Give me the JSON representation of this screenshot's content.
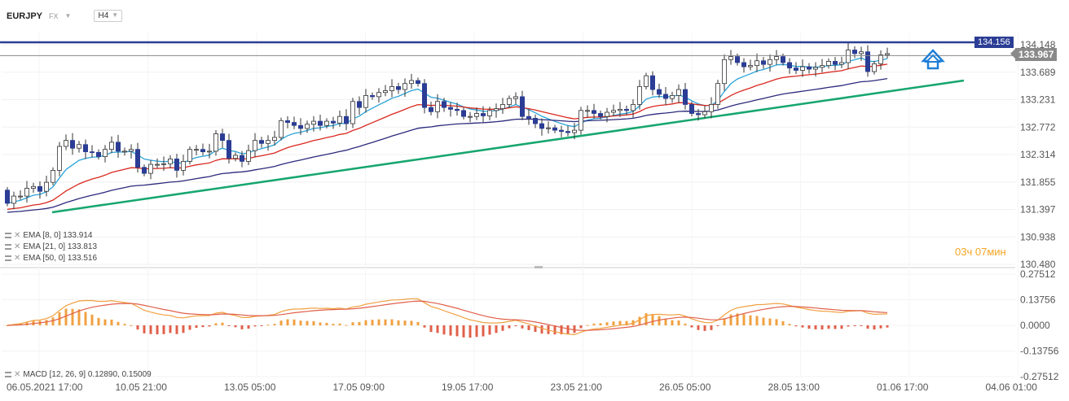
{
  "header": {
    "symbol": "EURJPY",
    "market": "FX",
    "timeframe": "H4"
  },
  "legend": {
    "ema8": "EMA [8, 0] 133.914",
    "ema21": "EMA [21, 0] 133.813",
    "ema50": "EMA [50, 0] 133.516",
    "macd": "MACD [12, 26, 9] 0.12890, 0.15009"
  },
  "countdown": {
    "hours": "03",
    "hours_unit": "ч",
    "minutes": "07",
    "minutes_unit": "мин"
  },
  "price_tags": {
    "resistance": "134.156",
    "current": "133.967"
  },
  "colors": {
    "bull": "#ffffff",
    "bear": "#2b3d94",
    "ema8": "#2aa3d8",
    "ema21": "#d9281f",
    "ema50": "#2b2a7c",
    "trend": "#16a66e",
    "resistance": "#2b3d94",
    "macd_line": "#f0a040",
    "signal_line": "#e0604a",
    "hist_pos": "#f0a040",
    "hist_neg": "#e0604a",
    "arrow": "#1f7fd6"
  },
  "icons": {
    "arrow": "double-up-arrow-icon",
    "legend": "hamburger-icon",
    "remove": "close-icon"
  },
  "chart_data": [
    {
      "type": "candlestick",
      "ylim": [
        130.48,
        134.28
      ],
      "y_ticks": [
        "134.148",
        "133.689",
        "133.231",
        "132.772",
        "132.314",
        "131.855",
        "131.397",
        "130.938",
        "130.480"
      ],
      "x_ticks": [
        "06.05.2021 17:00",
        "10.05 21:00",
        "13.05 05:00",
        "17.05 09:00",
        "19.05 17:00",
        "23.05 21:00",
        "26.05 05:00",
        "28.05 13:00",
        "01.06 17:00",
        "04.06 01:00"
      ],
      "closes": [
        131.5,
        131.62,
        131.62,
        131.75,
        131.78,
        131.7,
        131.85,
        132.05,
        132.45,
        132.55,
        132.42,
        132.48,
        132.36,
        132.35,
        132.28,
        132.4,
        132.52,
        132.37,
        132.37,
        132.4,
        132.1,
        132.0,
        132.15,
        132.15,
        132.16,
        132.24,
        132.05,
        132.2,
        132.4,
        132.4,
        132.36,
        132.37,
        132.66,
        132.55,
        132.25,
        132.3,
        132.2,
        132.38,
        132.55,
        132.5,
        132.55,
        132.6,
        132.88,
        132.85,
        132.8,
        132.75,
        132.82,
        132.87,
        132.8,
        132.87,
        132.84,
        132.95,
        132.83,
        133.2,
        133.1,
        133.3,
        133.28,
        133.35,
        133.38,
        133.45,
        133.4,
        133.5,
        133.55,
        133.5,
        133.1,
        133.03,
        133.2,
        133.1,
        133.07,
        133.05,
        132.95,
        132.95,
        133.0,
        132.96,
        133.05,
        133.08,
        133.15,
        133.25,
        133.28,
        132.95,
        132.92,
        132.83,
        132.75,
        132.76,
        132.72,
        132.7,
        132.68,
        132.72,
        133.05,
        133.05,
        133.0,
        132.95,
        133.02,
        133.05,
        133.07,
        133.05,
        133.15,
        133.45,
        133.63,
        133.4,
        133.32,
        133.25,
        133.3,
        133.4,
        133.15,
        133.0,
        132.98,
        133.03,
        133.15,
        133.5,
        133.9,
        133.95,
        133.85,
        133.78,
        133.8,
        133.88,
        133.82,
        133.9,
        133.95,
        133.85,
        133.76,
        133.72,
        133.78,
        133.74,
        133.77,
        133.8,
        133.87,
        133.82,
        133.85,
        134.06,
        134.0,
        134.03,
        133.7,
        133.83,
        133.98,
        134.0
      ],
      "resistance": 134.156,
      "current_price": 133.967,
      "series": [
        {
          "name": "EMA [8, 0]",
          "last": 133.914
        },
        {
          "name": "EMA [21, 0]",
          "last": 133.813
        },
        {
          "name": "EMA [50, 0]",
          "last": 133.516
        }
      ]
    },
    {
      "type": "bar",
      "ylim": [
        -0.2751,
        0.2751
      ],
      "y_ticks": [
        "0.27512",
        "0.13756",
        "0.0000",
        "-0.13756",
        "-0.27512"
      ],
      "series": [
        {
          "name": "MACD [12, 26, 9]",
          "last": 0.1289
        },
        {
          "name": "signal",
          "last": 0.15009
        }
      ]
    }
  ]
}
